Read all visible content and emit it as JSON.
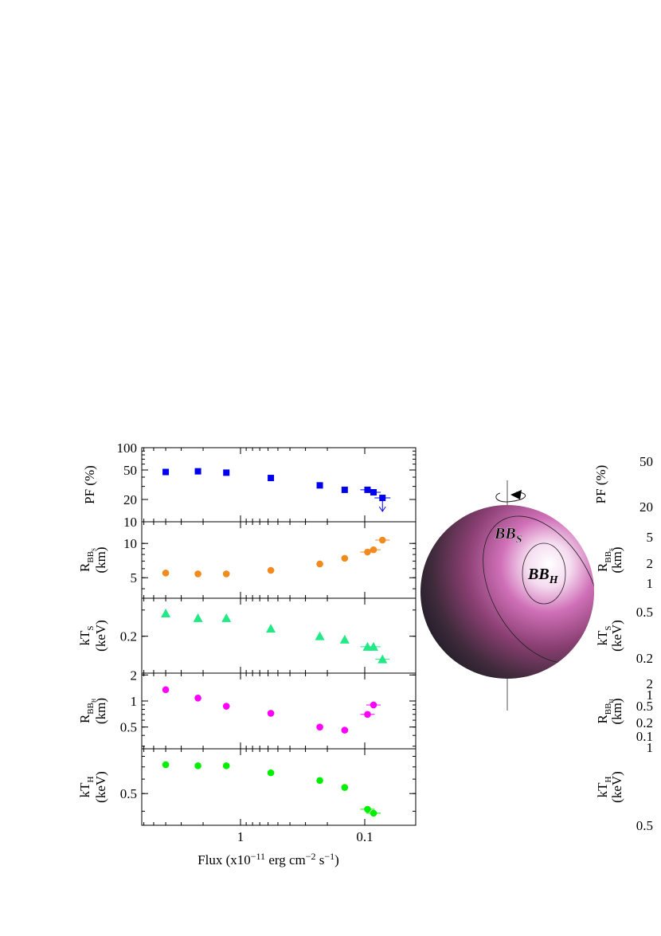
{
  "xlabel": {
    "pre": "Flux (x10",
    "exp1": "−11",
    "mid": " erg cm",
    "exp2": "−2",
    "mid2": " s",
    "exp3": "−1",
    "post": ")"
  },
  "xtick_labels": [
    {
      "value": 1,
      "label": "1"
    },
    {
      "value": 0.1,
      "label": "0.1"
    }
  ],
  "flux": [
    4.0,
    2.2,
    1.3,
    0.57,
    0.23,
    0.145,
    0.095,
    0.085,
    0.072
  ],
  "panels": [
    {
      "key": "pf",
      "ylabel_lines": [
        {
          "main": "PF (%)"
        }
      ],
      "scale": "log",
      "ylim": [
        10,
        100
      ],
      "ticks": [
        {
          "value": 100,
          "label": "100"
        },
        {
          "value": 50,
          "label": "50"
        },
        {
          "value": 20,
          "label": "20"
        },
        {
          "value": 10,
          "label": "10"
        }
      ],
      "marker": "square",
      "color": "#0000ee",
      "values": [
        47,
        48,
        46,
        39,
        31,
        27,
        27,
        25,
        null
      ],
      "upper_limit": {
        "flux": 0.072,
        "value": 21
      }
    },
    {
      "key": "rbbs",
      "ylabel_lines": [
        {
          "main": "R",
          "sub": "BB",
          "subsub": "S"
        },
        {
          "main": "(km)"
        }
      ],
      "scale": "log",
      "ylim": [
        3.3,
        15.5
      ],
      "ticks": [
        {
          "value": 10,
          "label": "10"
        },
        {
          "value": 5,
          "label": "5"
        }
      ],
      "marker": "circle",
      "color": "#f28a1e",
      "values": [
        5.5,
        5.4,
        5.4,
        5.8,
        6.6,
        7.4,
        8.4,
        8.8,
        10.7
      ]
    },
    {
      "key": "kts",
      "ylabel_lines": [
        {
          "main": "kT",
          "sub": "S"
        },
        {
          "main": "(keV)"
        }
      ],
      "scale": "log",
      "ylim": [
        0.113,
        0.36
      ],
      "ticks": [
        {
          "value": 0.2,
          "label": "0.2"
        }
      ],
      "marker": "triangle",
      "color": "#22e885",
      "values": [
        0.285,
        0.265,
        0.265,
        0.225,
        0.2,
        0.19,
        0.17,
        0.17,
        0.14
      ]
    },
    {
      "key": "rbbh",
      "ylabel_lines": [
        {
          "main": "R",
          "sub": "BB",
          "subsub": "H"
        },
        {
          "main": "(km)"
        }
      ],
      "scale": "log",
      "ylim": [
        0.28,
        2.1
      ],
      "ticks": [
        {
          "value": 2,
          "label": "2"
        },
        {
          "value": 1,
          "label": "1"
        },
        {
          "value": 0.5,
          "label": "0.5"
        }
      ],
      "marker": "circle",
      "color": "#ff00ff",
      "values": [
        1.35,
        1.08,
        0.87,
        0.72,
        0.5,
        0.46,
        0.7,
        0.9,
        null
      ]
    },
    {
      "key": "kth",
      "ylabel_lines": [
        {
          "main": "kT",
          "sub": "H"
        },
        {
          "main": "(keV)"
        }
      ],
      "scale": "log",
      "ylim": [
        0.335,
        0.88
      ],
      "ticks": [
        {
          "value": 0.5,
          "label": "0.5"
        }
      ],
      "marker": "circle",
      "color": "#00ee00",
      "values": [
        0.72,
        0.71,
        0.71,
        0.65,
        0.59,
        0.54,
        0.41,
        0.39,
        null
      ]
    }
  ],
  "sphere_labels": {
    "outer": "BB",
    "outer_sub": "S",
    "inner": "BB",
    "inner_sub": "H"
  },
  "right_panel": {
    "ylabels": [
      {
        "main": "PF (%)"
      },
      {
        "main": "R",
        "sub": "BB",
        "subsub": "S",
        "line2": "(km)"
      },
      {
        "main": "kT",
        "sub": "S",
        "line2": "(keV)"
      },
      {
        "main": "R",
        "sub": "BB",
        "subsub": "H",
        "line2": "(km)"
      },
      {
        "main": "kT",
        "sub": "H",
        "line2": "(keV)"
      }
    ],
    "ticks": [
      {
        "panel": 0,
        "label": "50"
      },
      {
        "panel": 0,
        "label": "20"
      },
      {
        "panel": 1,
        "label": "5"
      },
      {
        "panel": 1,
        "label": "2"
      },
      {
        "panel": 1,
        "label": "1"
      },
      {
        "panel": 2,
        "label": "0.5"
      },
      {
        "panel": 2,
        "label": "0.2"
      },
      {
        "panel": 3,
        "label": "2"
      },
      {
        "panel": 3,
        "label": "1"
      },
      {
        "panel": 3,
        "label": "0.5"
      },
      {
        "panel": 3,
        "label": "0.2"
      },
      {
        "panel": 3,
        "label": "0.1"
      },
      {
        "panel": 4,
        "label": "1"
      },
      {
        "panel": 4,
        "label": "0.5"
      }
    ]
  }
}
